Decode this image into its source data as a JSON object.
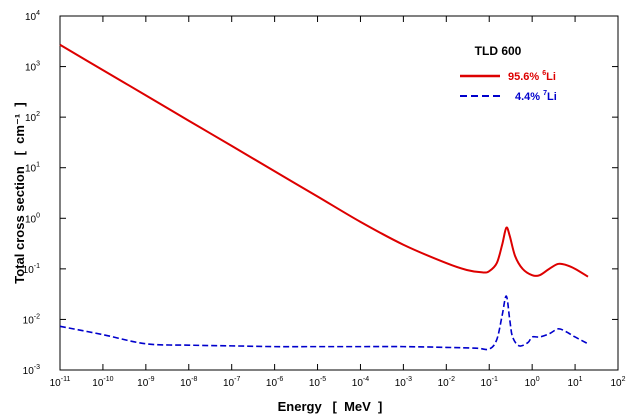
{
  "chart_data": {
    "type": "line",
    "title": "",
    "xlabel": "Energy   [  MeV  ]",
    "ylabel": "Total cross section   [  cm⁻¹  ]",
    "x_scale": "log",
    "y_scale": "log",
    "xlim": [
      1e-11,
      100
    ],
    "ylim": [
      0.001,
      10000
    ],
    "grid": false,
    "x_ticks": [
      {
        "base": "10",
        "exp": "-11"
      },
      {
        "base": "10",
        "exp": "-10"
      },
      {
        "base": "10",
        "exp": "-9"
      },
      {
        "base": "10",
        "exp": "-8"
      },
      {
        "base": "10",
        "exp": "-7"
      },
      {
        "base": "10",
        "exp": "-6"
      },
      {
        "base": "10",
        "exp": "-5"
      },
      {
        "base": "10",
        "exp": "-4"
      },
      {
        "base": "10",
        "exp": "-3"
      },
      {
        "base": "10",
        "exp": "-2"
      },
      {
        "base": "10",
        "exp": "-1"
      },
      {
        "base": "10",
        "exp": "0"
      },
      {
        "base": "10",
        "exp": "1"
      },
      {
        "base": "10",
        "exp": "2"
      }
    ],
    "y_ticks": [
      {
        "base": "10",
        "exp": "-3"
      },
      {
        "base": "10",
        "exp": "-2"
      },
      {
        "base": "10",
        "exp": "-1"
      },
      {
        "base": "10",
        "exp": "0"
      },
      {
        "base": "10",
        "exp": "1"
      },
      {
        "base": "10",
        "exp": "2"
      },
      {
        "base": "10",
        "exp": "3"
      },
      {
        "base": "10",
        "exp": "4"
      }
    ],
    "legend": {
      "title": "TLD 600",
      "position": "top-right",
      "entries": [
        {
          "label_main": "95.6% ",
          "label_sup": "6",
          "label_tail": "Li"
        },
        {
          "label_main": "4.4% ",
          "label_sup": "7",
          "label_tail": "Li"
        }
      ]
    },
    "series": [
      {
        "name": "95.6% 6Li",
        "color": "#dd0000",
        "style": "solid",
        "points": [
          [
            1e-11,
            2700
          ],
          [
            1e-10,
            850
          ],
          [
            1e-09,
            270
          ],
          [
            1e-08,
            85
          ],
          [
            1e-07,
            27
          ],
          [
            1e-06,
            8.5
          ],
          [
            1e-05,
            2.7
          ],
          [
            0.0001,
            0.85
          ],
          [
            0.001,
            0.3
          ],
          [
            0.01,
            0.13
          ],
          [
            0.03,
            0.095
          ],
          [
            0.07,
            0.085
          ],
          [
            0.1,
            0.09
          ],
          [
            0.15,
            0.13
          ],
          [
            0.2,
            0.3
          ],
          [
            0.25,
            0.65
          ],
          [
            0.3,
            0.45
          ],
          [
            0.4,
            0.18
          ],
          [
            0.6,
            0.1
          ],
          [
            1.0,
            0.075
          ],
          [
            1.5,
            0.075
          ],
          [
            2.5,
            0.1
          ],
          [
            4.0,
            0.125
          ],
          [
            6.0,
            0.12
          ],
          [
            10.0,
            0.1
          ],
          [
            20.0,
            0.07
          ]
        ]
      },
      {
        "name": "4.4% 7Li",
        "color": "#0000cc",
        "style": "dashed",
        "points": [
          [
            1e-11,
            0.0073
          ],
          [
            1e-10,
            0.005
          ],
          [
            1e-09,
            0.0033
          ],
          [
            1e-08,
            0.0031
          ],
          [
            1e-07,
            0.003
          ],
          [
            1e-06,
            0.0029
          ],
          [
            1e-05,
            0.0029
          ],
          [
            0.0001,
            0.0029
          ],
          [
            0.001,
            0.0029
          ],
          [
            0.01,
            0.0028
          ],
          [
            0.05,
            0.0027
          ],
          [
            0.1,
            0.0026
          ],
          [
            0.15,
            0.004
          ],
          [
            0.2,
            0.012
          ],
          [
            0.25,
            0.029
          ],
          [
            0.3,
            0.01
          ],
          [
            0.35,
            0.0045
          ],
          [
            0.5,
            0.003
          ],
          [
            0.8,
            0.0035
          ],
          [
            1.0,
            0.0045
          ],
          [
            1.5,
            0.0045
          ],
          [
            2.5,
            0.0052
          ],
          [
            4.0,
            0.0065
          ],
          [
            6.0,
            0.0058
          ],
          [
            10.0,
            0.0045
          ],
          [
            20.0,
            0.0033
          ]
        ]
      }
    ]
  }
}
